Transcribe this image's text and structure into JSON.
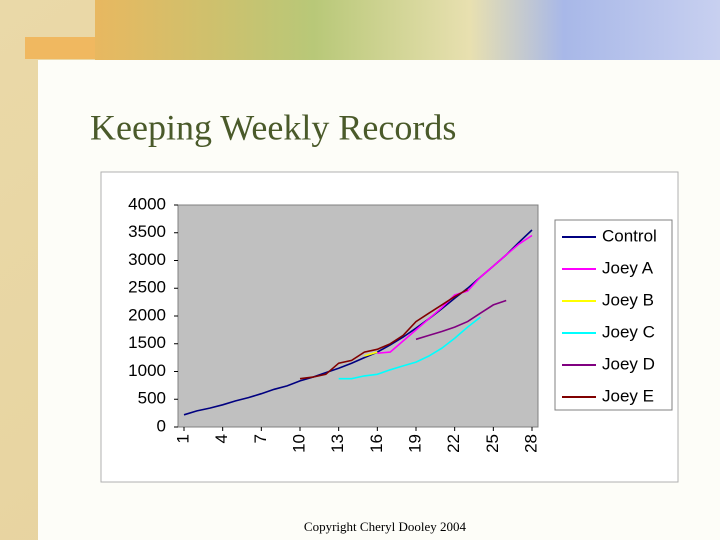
{
  "slide": {
    "title": "Keeping Weekly Records",
    "footer": "Copyright Cheryl Dooley 2004"
  },
  "chart_data": {
    "type": "line",
    "x": [
      1,
      2,
      3,
      4,
      5,
      6,
      7,
      8,
      9,
      10,
      11,
      12,
      13,
      14,
      15,
      16,
      17,
      18,
      19,
      20,
      21,
      22,
      23,
      24,
      25,
      26,
      27,
      28
    ],
    "xlim": [
      1,
      28
    ],
    "xticks": [
      1,
      4,
      7,
      10,
      13,
      16,
      19,
      22,
      25,
      28
    ],
    "ylim": [
      0,
      4000
    ],
    "yticks": [
      0,
      500,
      1000,
      1500,
      2000,
      2500,
      3000,
      3500,
      4000
    ],
    "grid": false,
    "legend": "right",
    "series": [
      {
        "name": "Control",
        "color": "#000080",
        "values": [
          220,
          290,
          340,
          400,
          470,
          530,
          600,
          680,
          740,
          830,
          900,
          980,
          1060,
          1150,
          1250,
          1350,
          1480,
          1620,
          1780,
          1950,
          2130,
          2320,
          2500,
          2700,
          2900,
          3100,
          3330,
          3550
        ]
      },
      {
        "name": "Joey A",
        "color": "#ff00ff",
        "values": [
          null,
          null,
          null,
          null,
          null,
          null,
          null,
          null,
          null,
          null,
          null,
          null,
          null,
          null,
          null,
          1330,
          1350,
          1550,
          1750,
          1950,
          2150,
          2380,
          2450,
          2700,
          2900,
          3100,
          3300,
          3450
        ]
      },
      {
        "name": "Joey B",
        "color": "#ffff00",
        "values": [
          null,
          null,
          null,
          null,
          null,
          null,
          null,
          null,
          null,
          null,
          null,
          null,
          null,
          null,
          1280,
          1350,
          null,
          null,
          null,
          null,
          null,
          null,
          null,
          null,
          null,
          null,
          null,
          null
        ]
      },
      {
        "name": "Joey C",
        "color": "#00ffff",
        "values": [
          null,
          null,
          null,
          null,
          null,
          null,
          null,
          null,
          null,
          null,
          null,
          null,
          870,
          870,
          920,
          950,
          1030,
          1100,
          1170,
          1280,
          1420,
          1600,
          1800,
          1980,
          null,
          null,
          null,
          null
        ]
      },
      {
        "name": "Joey D",
        "color": "#800080",
        "values": [
          null,
          null,
          null,
          null,
          null,
          null,
          null,
          null,
          null,
          null,
          null,
          null,
          null,
          null,
          null,
          null,
          null,
          null,
          1580,
          1650,
          1720,
          1800,
          1900,
          2050,
          2200,
          2280,
          null,
          null
        ]
      },
      {
        "name": "Joey E",
        "color": "#800000",
        "values": [
          null,
          null,
          null,
          null,
          null,
          null,
          null,
          null,
          null,
          870,
          900,
          950,
          1150,
          1200,
          1350,
          1400,
          1500,
          1650,
          1900,
          2050,
          2200,
          2350,
          2480,
          null,
          null,
          null,
          null,
          null
        ]
      }
    ]
  }
}
